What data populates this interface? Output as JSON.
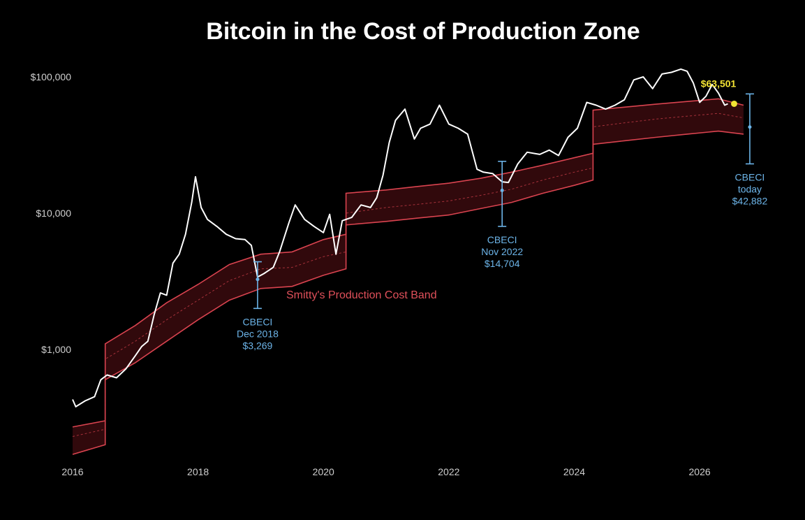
{
  "chart_data": {
    "type": "line",
    "title": "Bitcoin in the Cost of Production Zone",
    "xlabel": "",
    "ylabel": "",
    "y_scale": "log",
    "xlim": [
      2016,
      2026.8
    ],
    "ylim": [
      150,
      120000
    ],
    "x_ticks": [
      "2016",
      "2018",
      "2020",
      "2022",
      "2024",
      "2026"
    ],
    "y_ticks": [
      "$1,000",
      "$10,000",
      "$100,000"
    ],
    "grid": false,
    "colors": {
      "price": "#ffffff",
      "band": "#d9434f",
      "band_fill": "#3a0a0e",
      "cbeci": "#6cb4e8",
      "current": "#f2e233"
    },
    "series": [
      {
        "name": "",
        "x": [
          2016.0,
          2016.05,
          2016.2,
          2016.35,
          2016.45,
          2016.55,
          2016.7,
          2016.85,
          2017.0,
          2017.1,
          2017.2,
          2017.3,
          2017.4,
          2017.5,
          2017.6,
          2017.7,
          2017.8,
          2017.9,
          2017.96,
          2018.05,
          2018.15,
          2018.3,
          2018.45,
          2018.6,
          2018.75,
          2018.85,
          2018.95,
          2019.05,
          2019.2,
          2019.3,
          2019.45,
          2019.55,
          2019.7,
          2019.85,
          2020.0,
          2020.1,
          2020.2,
          2020.3,
          2020.45,
          2020.6,
          2020.75,
          2020.85,
          2020.95,
          2021.05,
          2021.15,
          2021.3,
          2021.45,
          2021.55,
          2021.7,
          2021.85,
          2022.0,
          2022.15,
          2022.3,
          2022.45,
          2022.55,
          2022.7,
          2022.85,
          2022.95,
          2023.1,
          2023.25,
          2023.45,
          2023.6,
          2023.75,
          2023.9,
          2024.05,
          2024.2,
          2024.35,
          2024.5,
          2024.65,
          2024.8,
          2024.95,
          2025.1,
          2025.25,
          2025.4,
          2025.55,
          2025.7,
          2025.8,
          2025.9,
          2026.0,
          2026.1,
          2026.2,
          2026.3,
          2026.4,
          2026.45
        ],
        "values": [
          430,
          380,
          420,
          450,
          600,
          650,
          620,
          720,
          900,
          1050,
          1150,
          1800,
          2600,
          2500,
          4300,
          5000,
          7000,
          12000,
          18500,
          11000,
          9000,
          8000,
          7000,
          6500,
          6400,
          5800,
          3400,
          3600,
          4000,
          5200,
          8500,
          11500,
          9000,
          8000,
          7200,
          9800,
          5000,
          8800,
          9300,
          11500,
          11000,
          13000,
          19000,
          33000,
          48000,
          58000,
          35000,
          42000,
          45000,
          62000,
          45000,
          42000,
          38000,
          21000,
          20000,
          19500,
          17000,
          16800,
          23000,
          28000,
          27000,
          29000,
          26500,
          36000,
          42000,
          65000,
          62000,
          58000,
          62000,
          68000,
          95000,
          100000,
          82000,
          105000,
          108000,
          114000,
          110000,
          90000,
          65000,
          72000,
          88000,
          76000,
          62000,
          63501
        ]
      },
      {
        "name": "Smitty's Production Cost Band",
        "x": [
          2016.0,
          2016.52,
          2016.52,
          2017.0,
          2017.5,
          2018.0,
          2018.5,
          2019.0,
          2019.5,
          2020.0,
          2020.36,
          2020.36,
          2021.0,
          2021.5,
          2022.0,
          2022.5,
          2023.0,
          2023.5,
          2024.0,
          2024.3,
          2024.3,
          2024.8,
          2025.3,
          2025.8,
          2026.3,
          2026.7
        ],
        "upper": [
          270,
          300,
          1100,
          1500,
          2200,
          3000,
          4200,
          5000,
          5200,
          6400,
          7000,
          14000,
          14800,
          15700,
          16600,
          18000,
          20000,
          22500,
          25500,
          27500,
          57000,
          60000,
          63000,
          66000,
          69000,
          62000
        ],
        "mid": [
          230,
          260,
          850,
          1150,
          1650,
          2300,
          3200,
          3900,
          4000,
          4800,
          5200,
          10000,
          11000,
          11600,
          12300,
          13500,
          15000,
          17500,
          20000,
          21500,
          43000,
          46000,
          49000,
          51500,
          54000,
          50000
        ],
        "lower": [
          170,
          200,
          600,
          800,
          1150,
          1650,
          2300,
          2800,
          2900,
          3500,
          3900,
          8200,
          8700,
          9200,
          9700,
          10800,
          12000,
          14000,
          16000,
          17500,
          32000,
          34000,
          36000,
          38000,
          40000,
          38000
        ]
      }
    ],
    "annotations": {
      "band_label": "Smitty's Production Cost Band",
      "current_price": {
        "label": "$63,501",
        "x": 2026.55,
        "y": 63501
      },
      "cbeci": [
        {
          "lines": [
            "CBECI",
            "Dec 2018",
            "$3,269"
          ],
          "x": 2018.95,
          "value": 3269,
          "range": [
            2000,
            4400
          ]
        },
        {
          "lines": [
            "CBECI",
            "Nov 2022",
            "$14,704"
          ],
          "x": 2022.85,
          "value": 14704,
          "range": [
            8000,
            24000
          ]
        },
        {
          "lines": [
            "CBECI",
            "today",
            "$42,882"
          ],
          "x": 2026.8,
          "value": 42882,
          "range": [
            23000,
            75000
          ]
        }
      ]
    }
  }
}
